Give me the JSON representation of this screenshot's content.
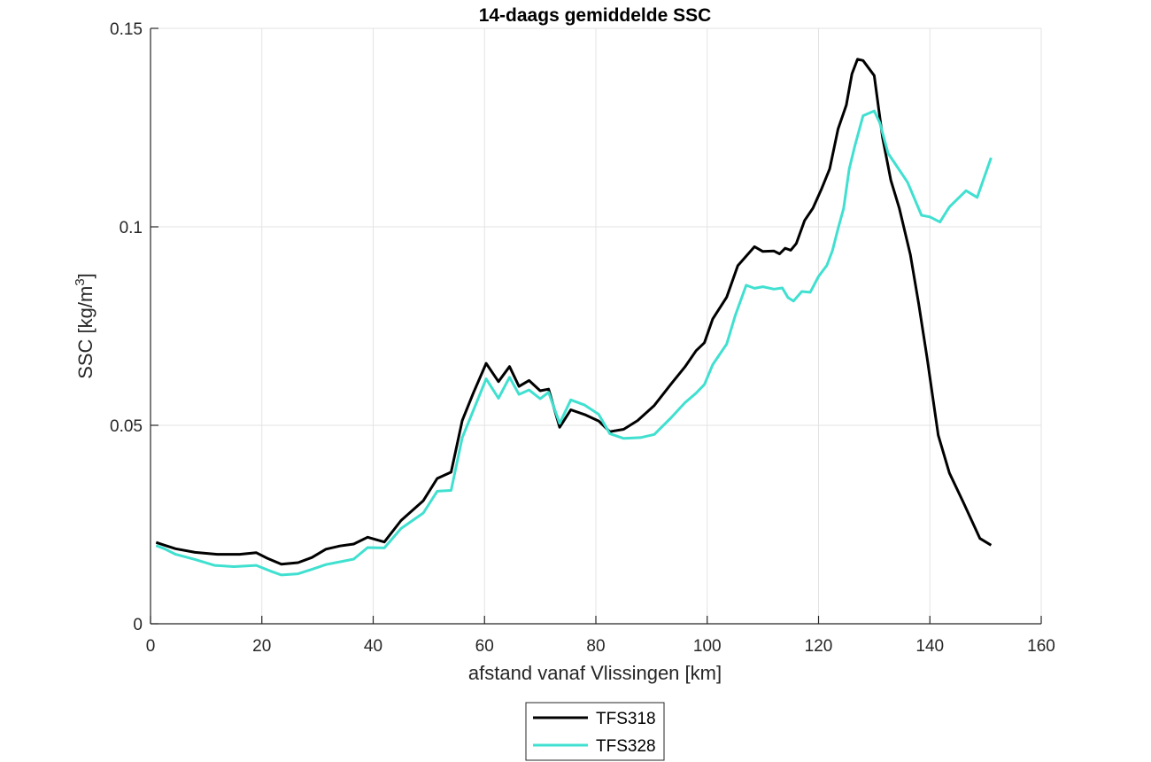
{
  "chart_data": {
    "type": "line",
    "title": "14-daags gemiddelde SSC",
    "xlabel": "afstand vanaf Vlissingen [km]",
    "ylabel": "SSC [kg/m",
    "ylabel_superscript": "3",
    "ylabel_suffix": "]",
    "xlim": [
      0,
      160
    ],
    "ylim": [
      0,
      0.15
    ],
    "xticks": [
      0,
      20,
      40,
      60,
      80,
      100,
      120,
      140,
      160
    ],
    "xtick_labels": [
      "0",
      "20",
      "40",
      "60",
      "80",
      "100",
      "120",
      "140",
      "160"
    ],
    "yticks": [
      0,
      0.05,
      0.1,
      0.15
    ],
    "ytick_labels": [
      "0",
      "0.05",
      "0.1",
      "0.15"
    ],
    "grid": true,
    "legend_position": "bottom-center",
    "series": [
      {
        "name": "TFS318",
        "color": "#000000",
        "points": [
          [
            1,
            0.0205
          ],
          [
            2.5,
            0.0198
          ],
          [
            4.5,
            0.0189
          ],
          [
            8,
            0.018
          ],
          [
            12,
            0.0175
          ],
          [
            16,
            0.0175
          ],
          [
            19,
            0.0179
          ],
          [
            21,
            0.0165
          ],
          [
            23.5,
            0.015
          ],
          [
            26.5,
            0.0154
          ],
          [
            29,
            0.0167
          ],
          [
            31.5,
            0.0188
          ],
          [
            34,
            0.0196
          ],
          [
            36.5,
            0.0201
          ],
          [
            39,
            0.0218
          ],
          [
            42,
            0.0206
          ],
          [
            45,
            0.026
          ],
          [
            49,
            0.031
          ],
          [
            51.5,
            0.0366
          ],
          [
            54,
            0.0382
          ],
          [
            56,
            0.0512
          ],
          [
            58,
            0.0582
          ],
          [
            60.3,
            0.0656
          ],
          [
            62.5,
            0.061
          ],
          [
            64.5,
            0.0648
          ],
          [
            66.2,
            0.0598
          ],
          [
            68,
            0.0613
          ],
          [
            70,
            0.0587
          ],
          [
            71.5,
            0.0591
          ],
          [
            73.5,
            0.0495
          ],
          [
            75.5,
            0.0539
          ],
          [
            78,
            0.0527
          ],
          [
            80.5,
            0.0511
          ],
          [
            82.5,
            0.0484
          ],
          [
            85,
            0.049
          ],
          [
            87.5,
            0.0512
          ],
          [
            90.5,
            0.055
          ],
          [
            93.5,
            0.0604
          ],
          [
            96,
            0.0647
          ],
          [
            98,
            0.0688
          ],
          [
            99.5,
            0.0708
          ],
          [
            101,
            0.0768
          ],
          [
            103.5,
            0.0823
          ],
          [
            105.5,
            0.0902
          ],
          [
            108.5,
            0.095
          ],
          [
            110,
            0.0938
          ],
          [
            112,
            0.0939
          ],
          [
            113,
            0.0932
          ],
          [
            114,
            0.0946
          ],
          [
            115,
            0.0941
          ],
          [
            116,
            0.0958
          ],
          [
            117.5,
            0.1016
          ],
          [
            119,
            0.1047
          ],
          [
            120.5,
            0.1094
          ],
          [
            122,
            0.1146
          ],
          [
            123.5,
            0.1246
          ],
          [
            125,
            0.1307
          ],
          [
            126,
            0.1385
          ],
          [
            127,
            0.1422
          ],
          [
            128,
            0.1419
          ],
          [
            130,
            0.1381
          ],
          [
            131.5,
            0.1225
          ],
          [
            133,
            0.1117
          ],
          [
            134.5,
            0.1047
          ],
          [
            136.5,
            0.093
          ],
          [
            138,
            0.0805
          ],
          [
            139.5,
            0.067
          ],
          [
            141.5,
            0.0475
          ],
          [
            143.5,
            0.038
          ],
          [
            146,
            0.0306
          ],
          [
            149,
            0.0215
          ],
          [
            151,
            0.0198
          ]
        ]
      },
      {
        "name": "TFS328",
        "color": "#40E0D0",
        "points": [
          [
            1,
            0.0197
          ],
          [
            2.5,
            0.0189
          ],
          [
            4.5,
            0.0175
          ],
          [
            8,
            0.0162
          ],
          [
            11.5,
            0.0147
          ],
          [
            15,
            0.0144
          ],
          [
            19,
            0.0147
          ],
          [
            21.5,
            0.0133
          ],
          [
            23.5,
            0.0123
          ],
          [
            26.5,
            0.0126
          ],
          [
            29,
            0.0137
          ],
          [
            31.5,
            0.0149
          ],
          [
            34,
            0.0156
          ],
          [
            36.5,
            0.0163
          ],
          [
            39,
            0.0192
          ],
          [
            42,
            0.0191
          ],
          [
            45,
            0.024
          ],
          [
            49,
            0.0279
          ],
          [
            51.5,
            0.0334
          ],
          [
            54,
            0.0336
          ],
          [
            56,
            0.0469
          ],
          [
            58,
            0.0538
          ],
          [
            60.3,
            0.0617
          ],
          [
            62.5,
            0.0568
          ],
          [
            64.5,
            0.0621
          ],
          [
            66.2,
            0.0578
          ],
          [
            68,
            0.0589
          ],
          [
            70,
            0.0567
          ],
          [
            71.5,
            0.0583
          ],
          [
            73.5,
            0.0505
          ],
          [
            75.5,
            0.0564
          ],
          [
            78,
            0.0551
          ],
          [
            80.5,
            0.0528
          ],
          [
            82.5,
            0.0479
          ],
          [
            85,
            0.0467
          ],
          [
            88,
            0.0469
          ],
          [
            90.5,
            0.0477
          ],
          [
            93.5,
            0.0519
          ],
          [
            96,
            0.0557
          ],
          [
            98,
            0.0581
          ],
          [
            99.5,
            0.0603
          ],
          [
            101,
            0.0653
          ],
          [
            103.5,
            0.0705
          ],
          [
            105,
            0.0775
          ],
          [
            107,
            0.0853
          ],
          [
            108.5,
            0.0845
          ],
          [
            110,
            0.0849
          ],
          [
            112,
            0.0843
          ],
          [
            113.5,
            0.0846
          ],
          [
            114.5,
            0.0822
          ],
          [
            115.5,
            0.0813
          ],
          [
            117,
            0.0837
          ],
          [
            118.5,
            0.0835
          ],
          [
            120,
            0.0875
          ],
          [
            121.5,
            0.0903
          ],
          [
            122.5,
            0.094
          ],
          [
            123.5,
            0.0995
          ],
          [
            124.5,
            0.1046
          ],
          [
            125.5,
            0.1145
          ],
          [
            126.5,
            0.1203
          ],
          [
            128,
            0.128
          ],
          [
            130,
            0.1292
          ],
          [
            131,
            0.1262
          ],
          [
            132.5,
            0.1185
          ],
          [
            134,
            0.1154
          ],
          [
            136,
            0.1112
          ],
          [
            138.5,
            0.1029
          ],
          [
            140,
            0.1025
          ],
          [
            141.8,
            0.1012
          ],
          [
            143.5,
            0.105
          ],
          [
            146.5,
            0.1091
          ],
          [
            148.5,
            0.1074
          ],
          [
            151,
            0.1174
          ]
        ]
      }
    ]
  }
}
